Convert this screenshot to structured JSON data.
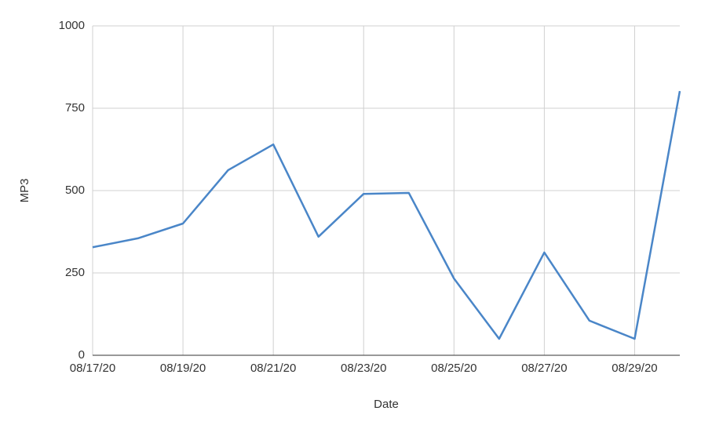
{
  "chart_data": {
    "type": "line",
    "x_label": "Date",
    "y_label": "MP3",
    "categories": [
      "08/17/20",
      null,
      "08/19/20",
      null,
      "08/21/20",
      null,
      "08/23/20",
      null,
      "08/25/20",
      null,
      "08/27/20",
      null,
      "08/29/20",
      null
    ],
    "values": [
      328,
      355,
      400,
      562,
      640,
      360,
      490,
      493,
      233,
      50,
      312,
      105,
      50,
      802
    ],
    "color": "#4a86c8",
    "ylim": [
      0,
      1000
    ],
    "yticks": [
      0,
      250,
      500,
      750,
      1000
    ],
    "grid": true
  }
}
